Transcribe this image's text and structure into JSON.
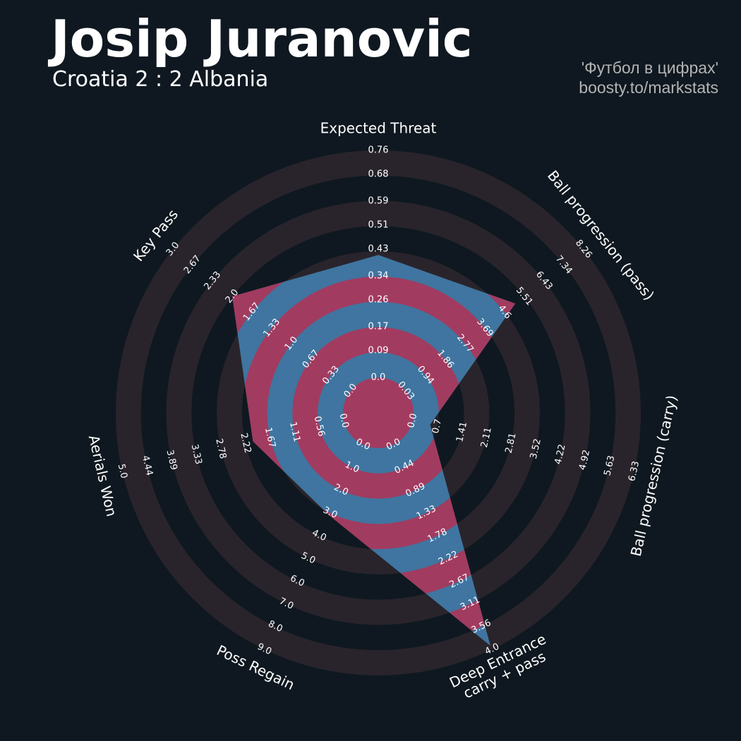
{
  "chart_data": {
    "type": "radar",
    "title": "Josip Juranovic",
    "subtitle": "Croatia 2 : 2 Albania",
    "credits": [
      "'Футбол в цифрах'",
      "boosty.to/markstats"
    ],
    "categories": [
      "Expected Threat",
      "Ball progression (pass)",
      "Ball progression (carry)",
      "Deep Entrance\ncarry + pass",
      "Poss Regain",
      "Aerials Won",
      "Key Pass"
    ],
    "axes": [
      {
        "lim": [
          0,
          0.76
        ],
        "ticks": [
          {
            "value": 0,
            "label": "0.0"
          },
          0.09,
          0.17,
          0.26,
          0.34,
          0.43,
          0.51,
          0.59,
          0.68,
          0.76
        ]
      },
      {
        "lim": [
          0.03,
          8.26
        ],
        "ticks": [
          0.03,
          0.94,
          1.86,
          2.77,
          3.69,
          4.6,
          5.51,
          6.43,
          7.34,
          8.26
        ]
      },
      {
        "lim": [
          0,
          6.33
        ],
        "ticks": [
          {
            "value": 0,
            "label": "0.0"
          },
          0.7,
          1.41,
          2.11,
          2.81,
          3.52,
          4.22,
          4.92,
          5.63,
          6.33
        ]
      },
      {
        "lim": [
          0,
          4
        ],
        "ticks": [
          {
            "value": 0,
            "label": "0.0"
          },
          0.44,
          0.89,
          1.33,
          1.78,
          2.22,
          2.67,
          3.11,
          3.56,
          {
            "value": 4,
            "label": "4.0"
          }
        ]
      },
      {
        "lim": [
          0,
          9
        ],
        "ticks": [
          {
            "value": 0,
            "label": "0.0"
          },
          {
            "value": 1,
            "label": "1.0"
          },
          {
            "value": 2,
            "label": "2.0"
          },
          {
            "value": 3,
            "label": "3.0"
          },
          {
            "value": 4,
            "label": "4.0"
          },
          {
            "value": 5,
            "label": "5.0"
          },
          {
            "value": 6,
            "label": "6.0"
          },
          {
            "value": 7,
            "label": "7.0"
          },
          {
            "value": 8,
            "label": "8.0"
          },
          {
            "value": 9,
            "label": "9.0"
          }
        ]
      },
      {
        "lim": [
          0,
          5
        ],
        "ticks": [
          {
            "value": 0,
            "label": "0.0"
          },
          0.56,
          1.11,
          1.67,
          2.22,
          2.78,
          3.33,
          3.89,
          4.44,
          {
            "value": 5,
            "label": "5.0"
          }
        ]
      },
      {
        "lim": [
          0,
          3
        ],
        "ticks": [
          {
            "value": 0,
            "label": "0.0"
          },
          0.33,
          0.67,
          {
            "value": 1,
            "label": "1.0"
          },
          1.33,
          1.67,
          {
            "value": 2,
            "label": "2.0"
          },
          2.33,
          2.67,
          {
            "value": 3,
            "label": "3.0"
          }
        ]
      }
    ],
    "values": [
      0.41,
      5.1,
      0.5,
      3.93,
      3.1,
      2.05,
      2.0
    ],
    "color": "#3f75a0",
    "color2": "#a23b60",
    "ring_color": "#29242b"
  }
}
